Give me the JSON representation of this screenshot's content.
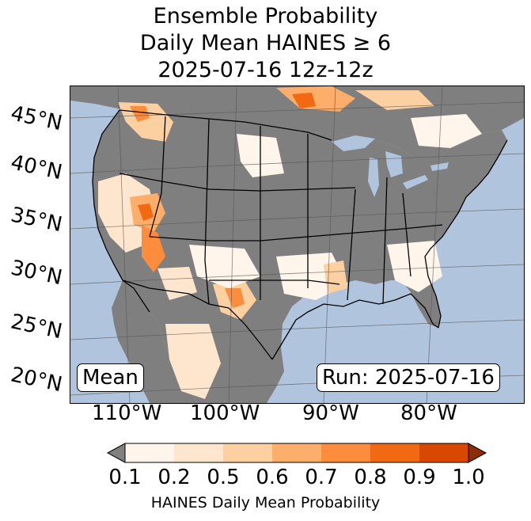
{
  "title": {
    "line1": "Ensemble Probability",
    "line2": "Daily Mean HAINES ≥ 6",
    "line3": "2025-07-16 12z-12z"
  },
  "map": {
    "projection": "Lambert Conformal",
    "latitude_labels": [
      "45°N",
      "40°N",
      "35°N",
      "30°N",
      "25°N",
      "20°N"
    ],
    "longitude_labels": [
      "110°W",
      "100°W",
      "90°W",
      "80°W"
    ],
    "stat_label": "Mean",
    "run_label": "Run: 2025-07-16",
    "colors": {
      "ocean": "#b0c4de",
      "below_threshold": "#808080",
      "state_lines": "#000000"
    }
  },
  "colorbar": {
    "label": "HAINES Daily Mean Probability",
    "ticks": [
      "0.1",
      "0.2",
      "0.5",
      "0.6",
      "0.7",
      "0.8",
      "0.9",
      "1.0"
    ],
    "under_color": "#808080",
    "colors": [
      "#fff5eb",
      "#fee6ce",
      "#fdd0a2",
      "#fdae6b",
      "#fd8d3c",
      "#f16913",
      "#d94801"
    ],
    "over_color": "#8c2d04"
  }
}
